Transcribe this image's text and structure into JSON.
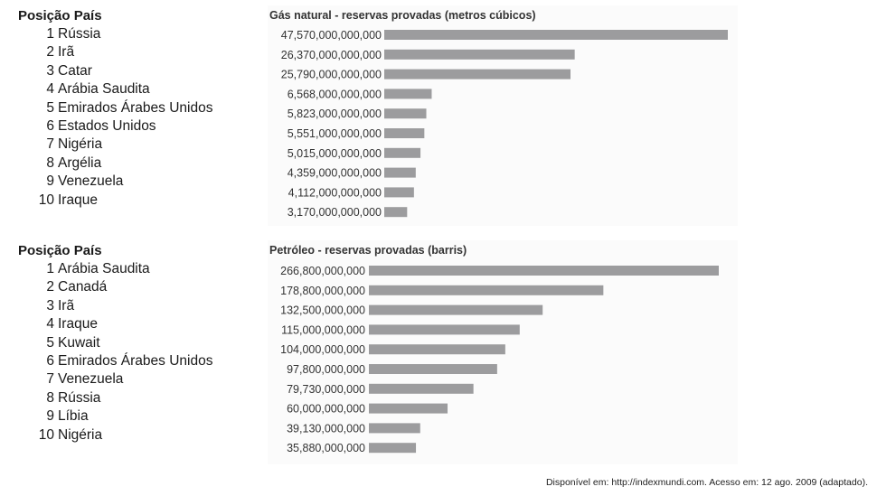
{
  "rankings": [
    {
      "header": "Posição País",
      "items": [
        {
          "pos": "1",
          "country": "Rússia"
        },
        {
          "pos": "2",
          "country": "Irã"
        },
        {
          "pos": "3",
          "country": "Catar"
        },
        {
          "pos": "4",
          "country": "Arábia Saudita"
        },
        {
          "pos": "5",
          "country": "Emirados Árabes Unidos"
        },
        {
          "pos": "6",
          "country": "Estados Unidos"
        },
        {
          "pos": "7",
          "country": "Nigéria"
        },
        {
          "pos": "8",
          "country": "Argélia"
        },
        {
          "pos": "9",
          "country": "Venezuela"
        },
        {
          "pos": "10",
          "country": "Iraque"
        }
      ]
    },
    {
      "header": "Posição País",
      "items": [
        {
          "pos": "1",
          "country": "Arábia Saudita"
        },
        {
          "pos": "2",
          "country": "Canadá"
        },
        {
          "pos": "3",
          "country": "Irã"
        },
        {
          "pos": "4",
          "country": "Iraque"
        },
        {
          "pos": "5",
          "country": "Kuwait"
        },
        {
          "pos": "6",
          "country": "Emirados Árabes Unidos"
        },
        {
          "pos": "7",
          "country": "Venezuela"
        },
        {
          "pos": "8",
          "country": "Rússia"
        },
        {
          "pos": "9",
          "country": "Líbia"
        },
        {
          "pos": "10",
          "country": "Nigéria"
        }
      ]
    }
  ],
  "chart_data": [
    {
      "type": "bar",
      "orientation": "horizontal",
      "title": "Gás natural - reservas provadas (metros cúbicos)",
      "labels": [
        "47,570,000,000,000",
        "26,370,000,000,000",
        "25,790,000,000,000",
        "6,568,000,000,000",
        "5,823,000,000,000",
        "5,551,000,000,000",
        "5,015,000,000,000",
        "4,359,000,000,000",
        "4,112,000,000,000",
        "3,170,000,000,000"
      ],
      "values": [
        47570000000000,
        26370000000000,
        25790000000000,
        6568000000000,
        5823000000000,
        5551000000000,
        5015000000000,
        4359000000000,
        4112000000000,
        3170000000000
      ],
      "bar_color": "#9c9c9e",
      "grid": false
    },
    {
      "type": "bar",
      "orientation": "horizontal",
      "title": "Petróleo - reservas provadas (barris)",
      "labels": [
        "266,800,000,000",
        "178,800,000,000",
        "132,500,000,000",
        "115,000,000,000",
        "104,000,000,000",
        "97,800,000,000",
        "79,730,000,000",
        "60,000,000,000",
        "39,130,000,000",
        "35,880,000,000"
      ],
      "values": [
        266800000000,
        178800000000,
        132500000000,
        115000000000,
        104000000000,
        97800000000,
        79730000000,
        60000000000,
        39130000000,
        35880000000
      ],
      "bar_color": "#9c9c9e",
      "grid": false
    }
  ],
  "source": "Disponível em: http://indexmundi.com. Acesso em: 12 ago. 2009 (adaptado)."
}
